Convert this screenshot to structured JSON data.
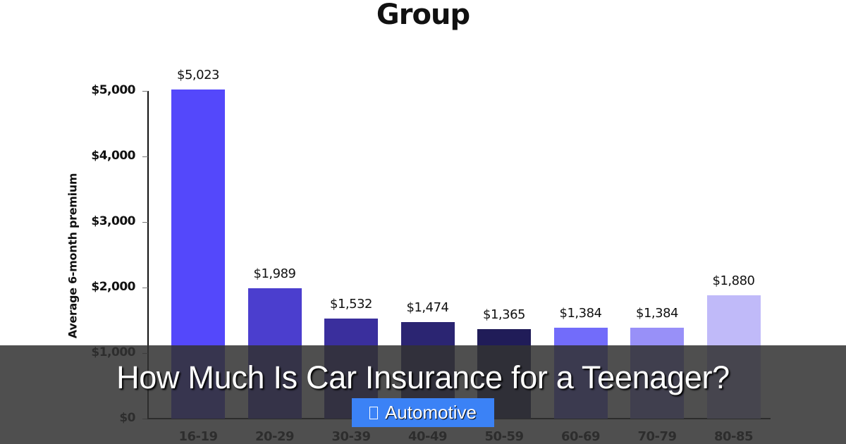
{
  "chart_data": {
    "type": "bar",
    "title": "Group",
    "xlabel": "",
    "ylabel": "Average 6-month premium",
    "categories": [
      "16-19",
      "20-29",
      "30-39",
      "40-49",
      "50-59",
      "60-69",
      "70-79",
      "80-85"
    ],
    "values": [
      5023,
      1989,
      1532,
      1474,
      1365,
      1384,
      1384,
      1880
    ],
    "value_labels": [
      "$5,023",
      "$1,989",
      "$1,532",
      "$1,474",
      "$1,365",
      "$1,384",
      "$1,384",
      "$1,880"
    ],
    "bar_colors": [
      "#5448fb",
      "#4b3ece",
      "#3a2f9d",
      "#2b2572",
      "#201c58",
      "#726cfa",
      "#9890f8",
      "#c0baf9"
    ],
    "ylim": [
      0,
      5000
    ],
    "yticks": [
      0,
      1000,
      2000,
      3000,
      4000,
      5000
    ],
    "ytick_labels": [
      "$0",
      "$1,000",
      "$2,000",
      "$3,000",
      "$4,000",
      "$5,000"
    ],
    "grid": false,
    "legend": null
  },
  "overlay": {
    "headline": "How Much Is Car Insurance for a Teenager?",
    "category_badge": {
      "icon": "folder-icon",
      "label": "Automotive",
      "color": "#3b82f6"
    }
  }
}
